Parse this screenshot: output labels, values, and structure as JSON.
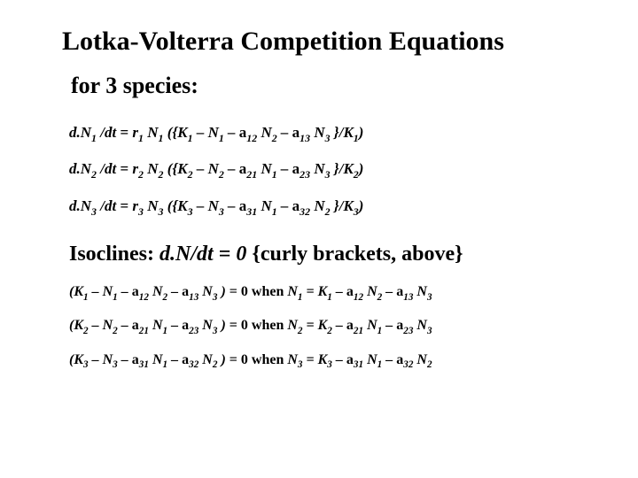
{
  "title": "Lotka-Volterra Competition Equations",
  "subtitle": "for 3 species:",
  "equations": {
    "eq1": {
      "dN": "d.N",
      "d_sub": "1",
      "dt": " /dt",
      "eq": " =",
      "r": " r",
      "r_sub": "1",
      "N": " N",
      "N_sub": "1",
      "open": " ({K",
      "K_sub": "1",
      "minus1": "  –  N",
      "Nm_sub": "1",
      "minus2": "  –  ",
      "a12": "a",
      "a12_sub": "12",
      "a12N": "  N",
      "a12N_sub": "2",
      "minus3": " – ",
      "a13": "a",
      "a13_sub": "13",
      "a13N": "  N",
      "a13N_sub": "3",
      "close": " }/K",
      "close_sub": "1",
      "paren": ")"
    },
    "eq2": {
      "dN": "d.N",
      "d_sub": "2",
      "dt": " /dt",
      "eq": " =",
      "r": " r",
      "r_sub": "2",
      "N": " N",
      "N_sub": "2",
      "open": " ({K",
      "K_sub": "2",
      "minus1": "  –  N",
      "Nm_sub": "2",
      "minus2": "  –  ",
      "a21": "a",
      "a21_sub": "21",
      "a21N": "  N",
      "a21N_sub": "1",
      "minus3": " – ",
      "a23": "a",
      "a23_sub": "23",
      "a23N": "  N",
      "a23N_sub": "3",
      "close": " }/K",
      "close_sub": "2",
      "paren": ")"
    },
    "eq3": {
      "dN": "d.N",
      "d_sub": "3",
      "dt": " /dt",
      "eq": " =",
      "r": " r",
      "r_sub": "3",
      "N": " N",
      "N_sub": "3",
      "open": " ({K",
      "K_sub": "3",
      "minus1": "  –  N",
      "Nm_sub": "3",
      "minus2": "  –  ",
      "a31": "a",
      "a31_sub": "31",
      "a31N": "  N",
      "a31N_sub": "1",
      "minus3": " – ",
      "a32": "a",
      "a32_sub": "32",
      "a32N": "  N",
      "a32N_sub": "2",
      "close": " }/K",
      "close_sub": "3",
      "paren": ")"
    }
  },
  "isoclines_header": {
    "label": "Isoclines:",
    "dN": " d.N/dt",
    "eq": " =",
    "zero": " 0",
    "note": "  {curly brackets, above}"
  },
  "isolines": {
    "i1": {
      "open": "(K",
      "K_sub": "1",
      "m1": "  – N",
      "N1_sub": "1",
      "m2": "  – ",
      "a12": "a",
      "a12_sub": "12",
      "a12N": " N",
      "a12N_sub": "2",
      "m3": " –  ",
      "a13": "a",
      "a13_sub": "13",
      "a13N": "  N",
      "a13N_sub": "3",
      "close": " )",
      "eq0": "  = 0",
      "when": "  when",
      "Nw": "  N",
      "Nw_sub": "1",
      "eqK": "  = K",
      "Kw_sub": "1",
      "mm1": "  – ",
      "aa12": "a",
      "aa12_sub": "12",
      "aa12N": " N",
      "aa12N_sub": "2",
      "mm2": " –  ",
      "aa13": "a",
      "aa13_sub": "13",
      "aa13N": "  N",
      "aa13N_sub": "3"
    },
    "i2": {
      "open": "(K",
      "K_sub": "2",
      "m1": "  – N",
      "N1_sub": "2",
      "m2": " – ",
      "a21": "a",
      "a21_sub": "21",
      "a21N": " N",
      "a21N_sub": "1",
      "m3": " –  ",
      "a23": "a",
      "a23_sub": "23",
      "a23N": "  N",
      "a23N_sub": "3",
      "close": " )",
      "eq0": "  = 0",
      "when": "  when",
      "Nw": "  N",
      "Nw_sub": "2",
      "eqK": "  = K",
      "Kw_sub": "2",
      "mm1": "  – ",
      "aa21": "a",
      "aa21_sub": "21",
      "aa21N": " N",
      "aa21N_sub": "1",
      "mm2": " –  ",
      "aa23": "a",
      "aa23_sub": "23",
      "aa23N": "  N",
      "aa23N_sub": "3"
    },
    "i3": {
      "open": "(K",
      "K_sub": "3",
      "m1": "  – N",
      "N1_sub": "3",
      "m2": " – ",
      "a31": "a",
      "a31_sub": "31",
      "a31N": " N",
      "a31N_sub": "1",
      "m3": " –  ",
      "a32": "a",
      "a32_sub": "32",
      "a32N": "  N",
      "a32N_sub": "2",
      "close": " )",
      "eq0": "  = 0",
      "when": "  when",
      "Nw": "  N",
      "Nw_sub": "3",
      "eqK": "  = K",
      "Kw_sub": "3",
      "mm1": "  – ",
      "aa31": "a",
      "aa31_sub": "31",
      "aa31N": " N",
      "aa31N_sub": "1",
      "mm2": " –  ",
      "aa32": "a",
      "aa32_sub": "32",
      "aa32N": "  N",
      "aa32N_sub": "2"
    }
  },
  "style": {
    "background_color": "#ffffff",
    "text_color": "#000000",
    "title_fontsize": 30,
    "subtitle_fontsize": 26,
    "eq_fontsize": 17,
    "iso_header_fontsize": 24,
    "iso_fontsize": 16,
    "font_family": "Times New Roman"
  }
}
